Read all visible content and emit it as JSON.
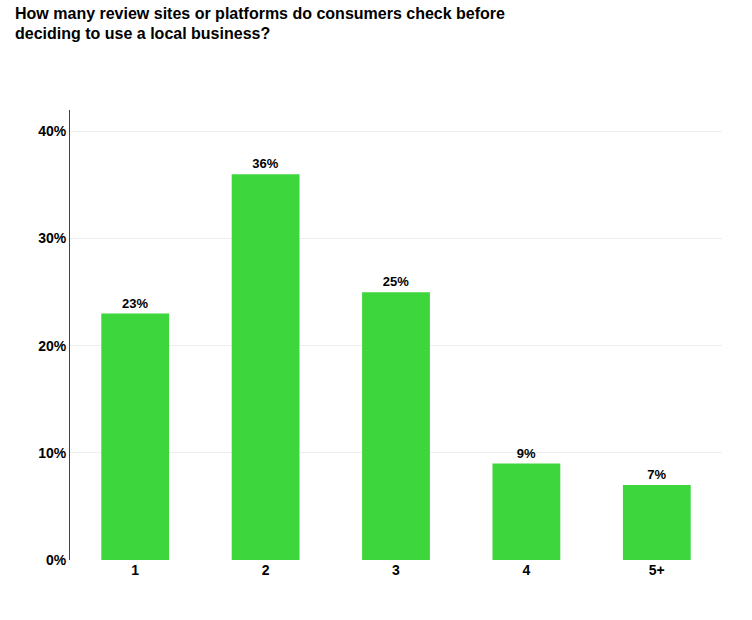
{
  "chart_data": {
    "type": "bar",
    "title": "How many review sites or platforms do consumers check before\ndeciding to use a local business?",
    "categories": [
      "1",
      "2",
      "3",
      "4",
      "5+"
    ],
    "values": [
      23,
      36,
      25,
      9,
      7
    ],
    "value_labels": [
      "23%",
      "36%",
      "25%",
      "9%",
      "7%"
    ],
    "data_labels": true,
    "color": "#3DD63D",
    "ylim": [
      0,
      42
    ],
    "yticks": [
      {
        "value": 0,
        "label": "0%"
      },
      {
        "value": 10,
        "label": "10%"
      },
      {
        "value": 20,
        "label": "20%"
      },
      {
        "value": 30,
        "label": "30%"
      },
      {
        "value": 40,
        "label": "40%"
      }
    ],
    "grid": true
  }
}
